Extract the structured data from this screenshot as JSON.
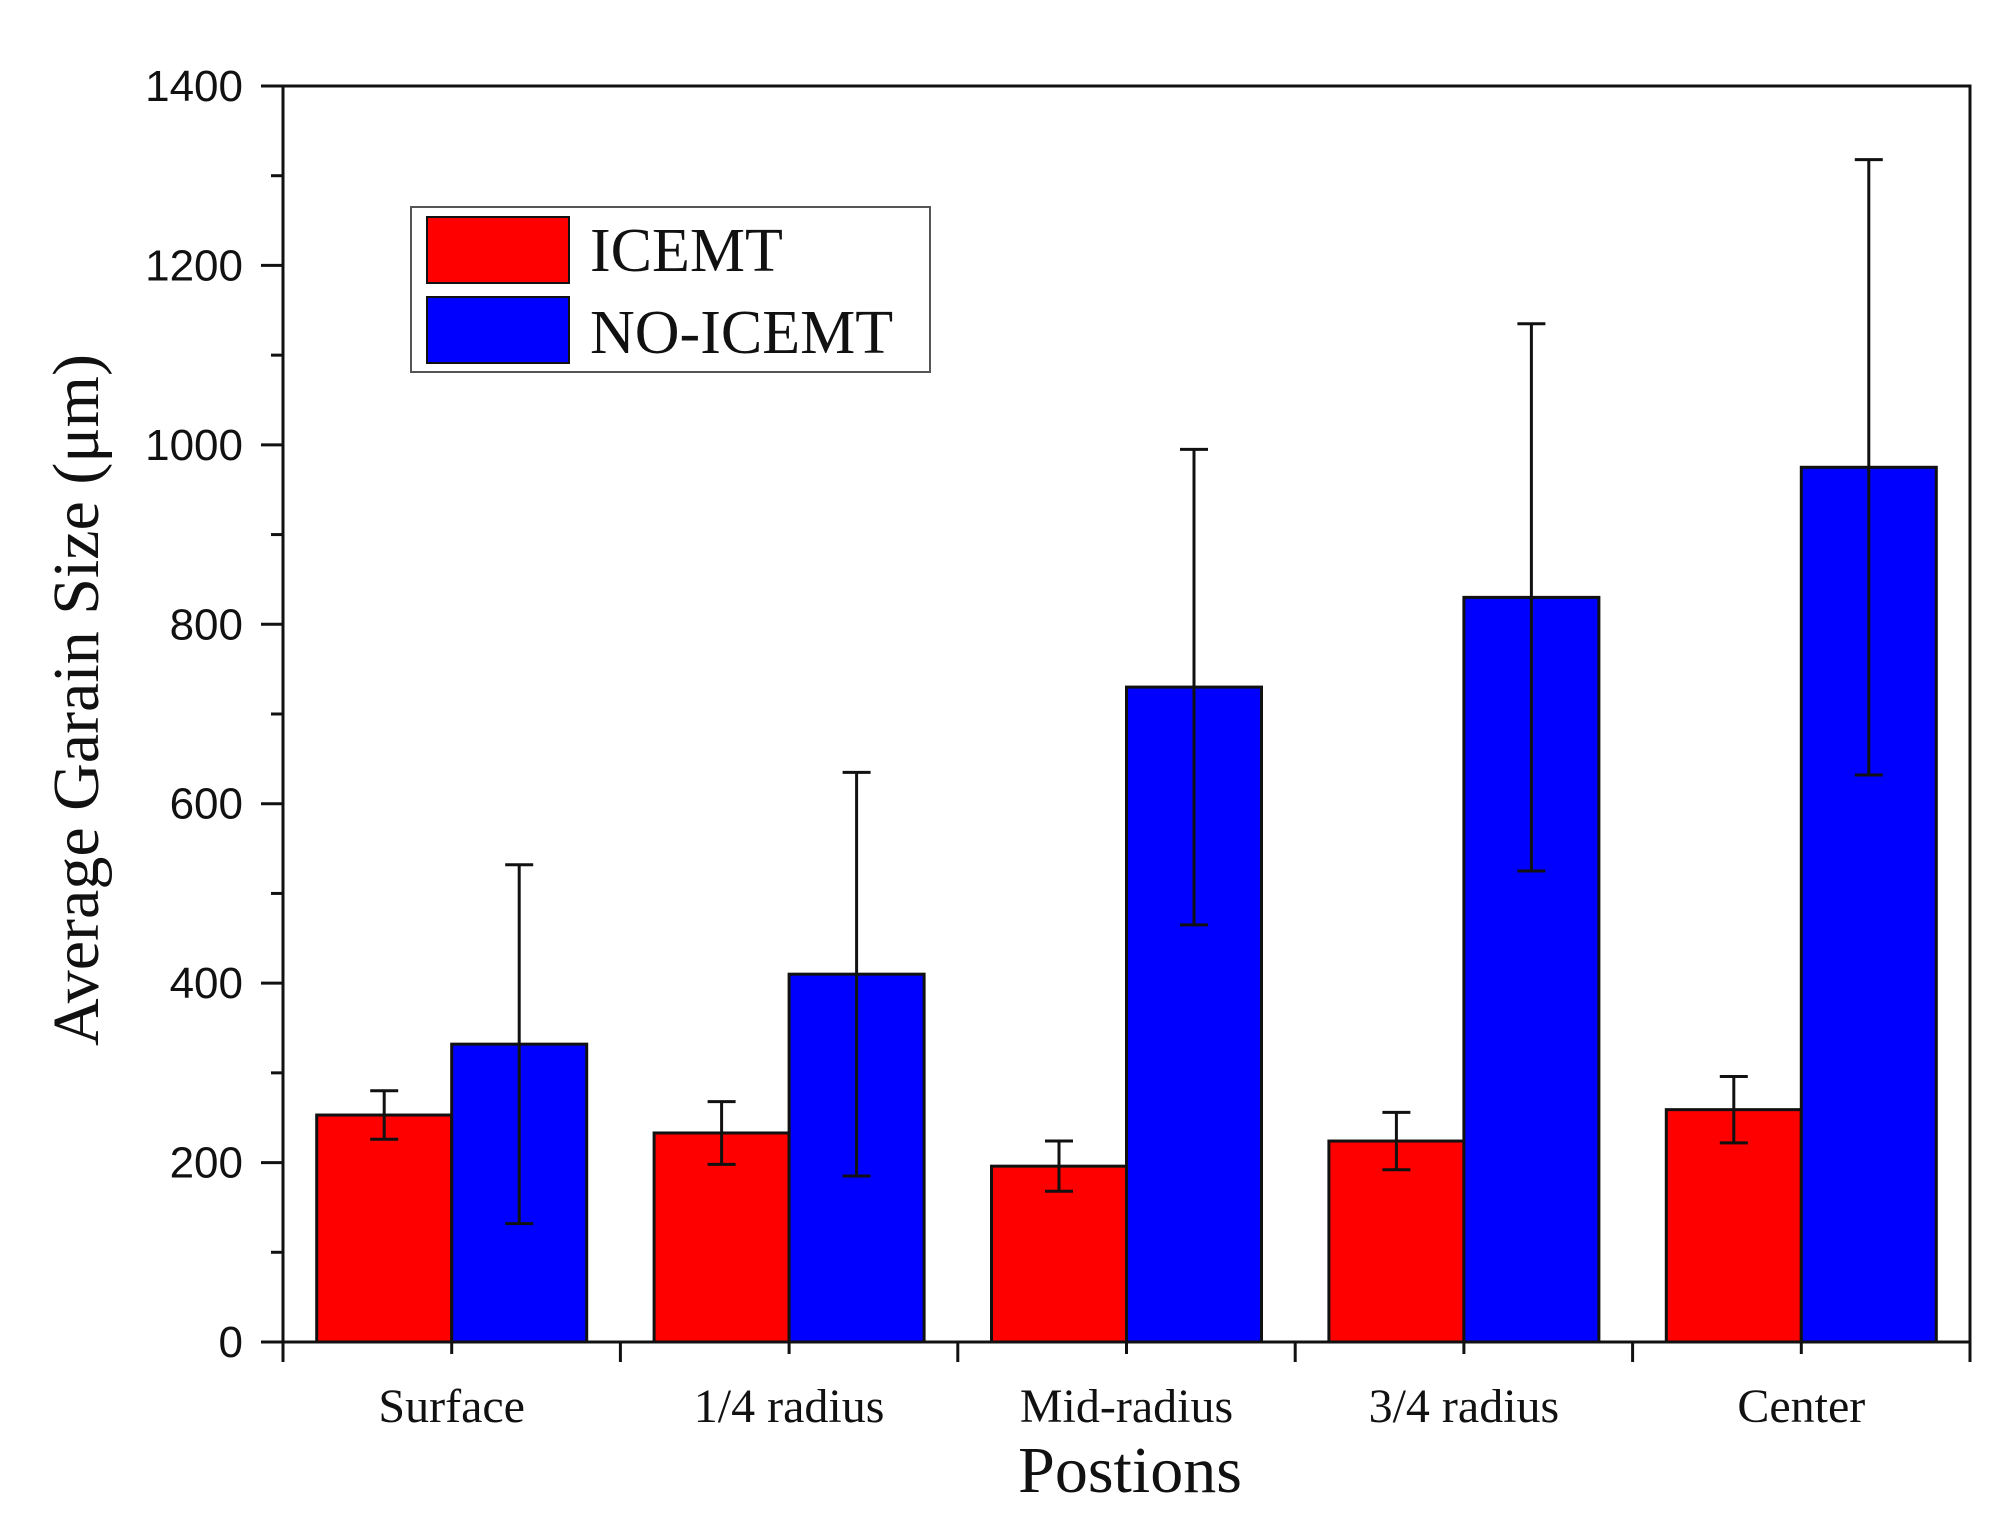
{
  "chart_data": {
    "type": "bar",
    "title": "",
    "xlabel": "Postions",
    "ylabel": "Average Garain Size (μm)",
    "ylim": [
      0,
      1400
    ],
    "yticks": [
      0,
      200,
      400,
      600,
      800,
      1000,
      1200,
      1400
    ],
    "grid": false,
    "legend_position": "top-left",
    "categories": [
      "Surface",
      "1/4 radius",
      "Mid-radius",
      "3/4 radius",
      "Center"
    ],
    "series": [
      {
        "name": "ICEMT",
        "color": "#ff0000",
        "values": [
          253,
          233,
          196,
          224,
          259
        ],
        "errors": [
          27,
          35,
          28,
          32,
          37
        ]
      },
      {
        "name": "NO-ICEMT",
        "color": "#0000ff",
        "values": [
          332,
          410,
          730,
          830,
          975
        ],
        "errors": [
          200,
          225,
          265,
          305,
          343
        ]
      }
    ]
  }
}
